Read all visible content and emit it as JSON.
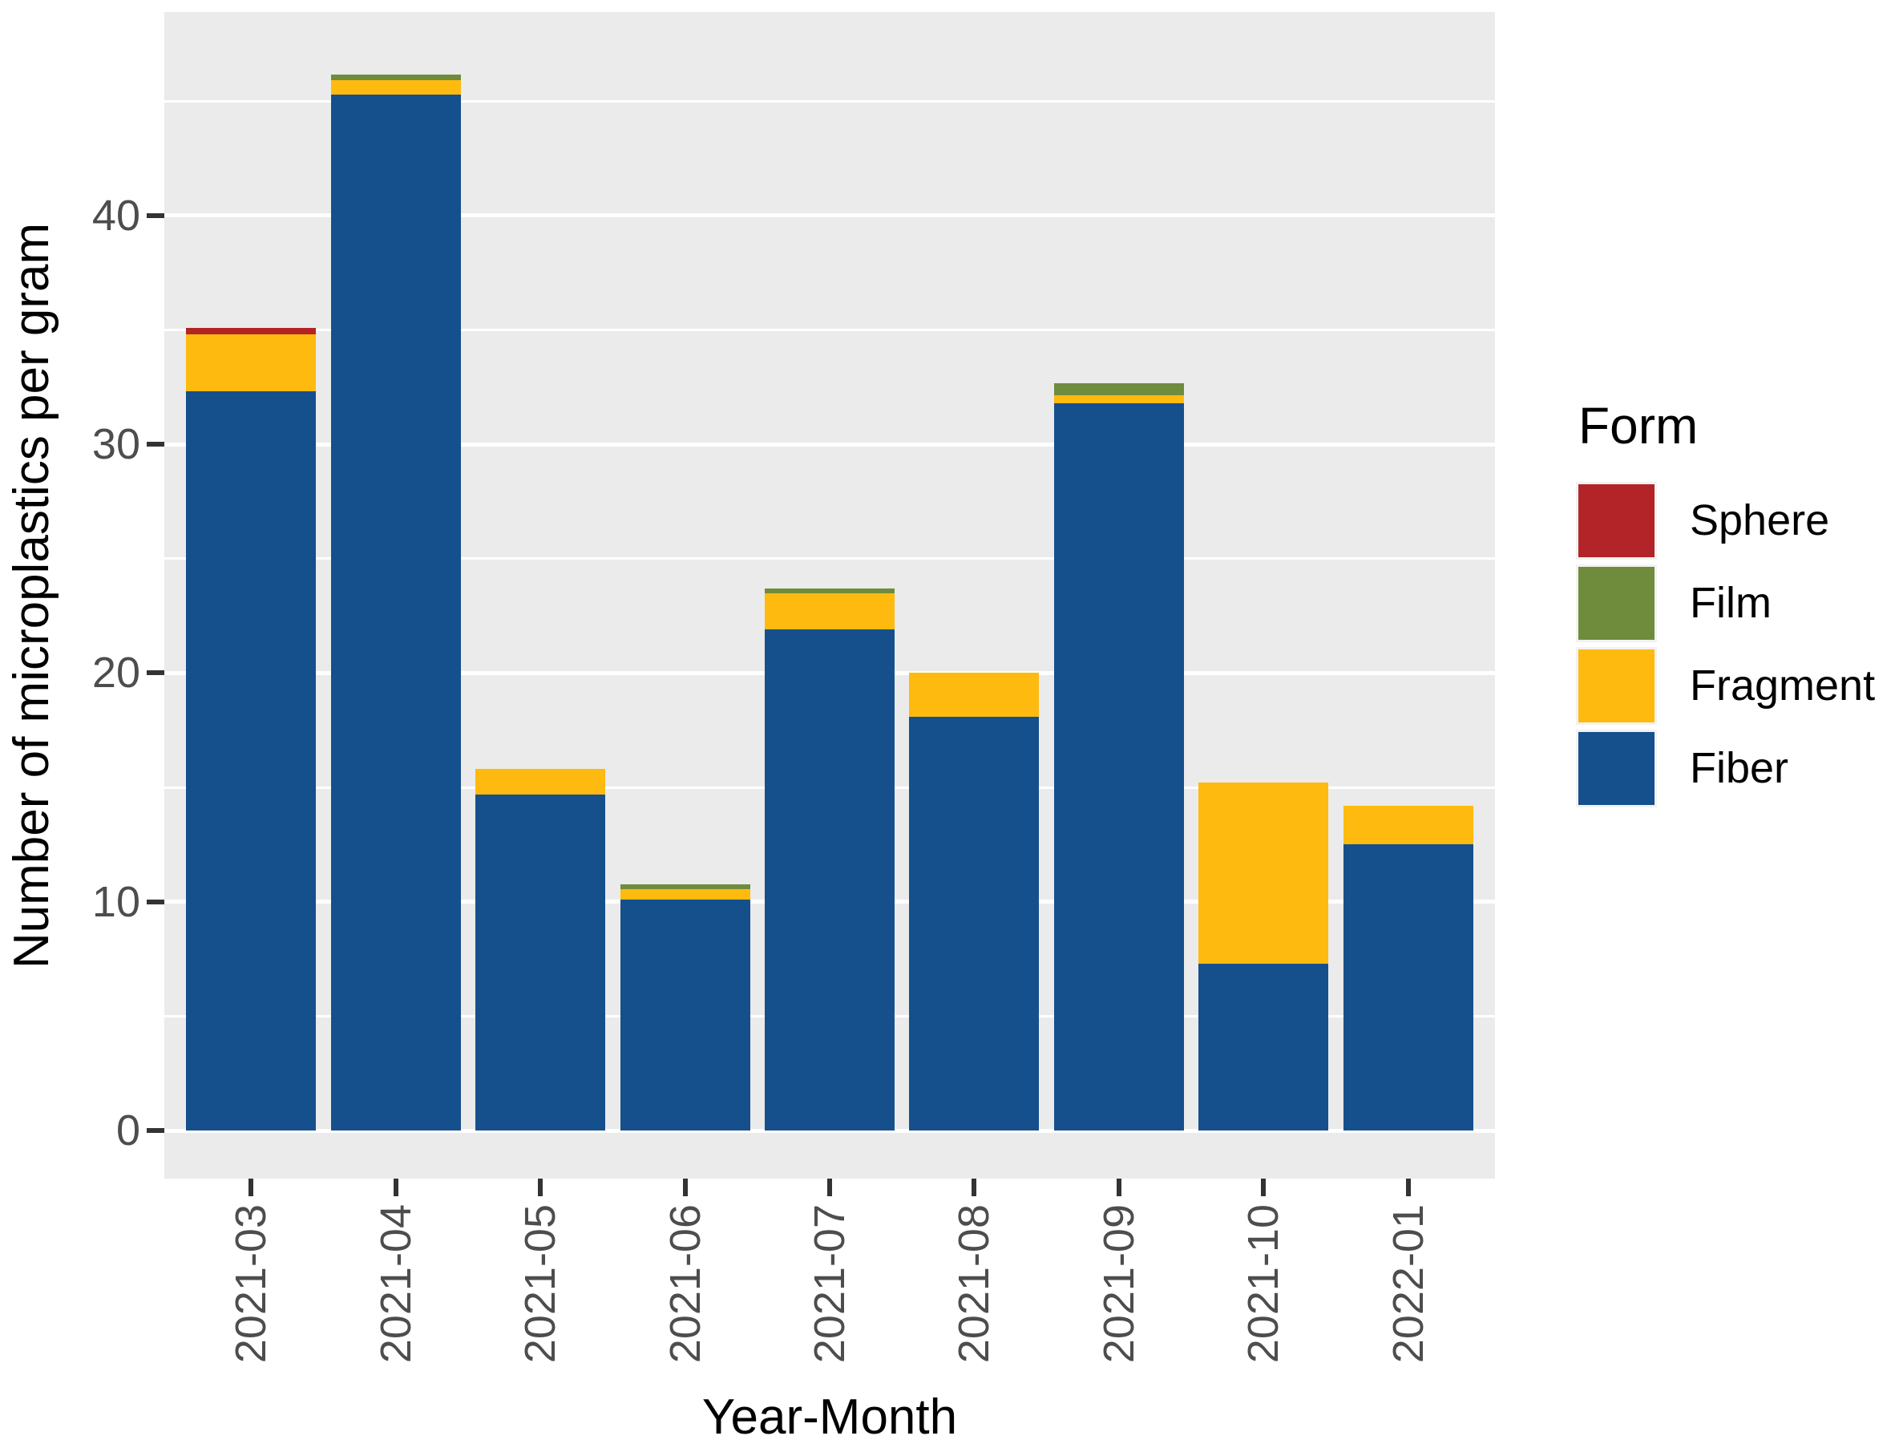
{
  "chart_data": {
    "type": "bar",
    "stacked": true,
    "title": "",
    "xlabel": "Year-Month",
    "ylabel": "Number of microplastics per gram",
    "categories": [
      "2021-03",
      "2021-04",
      "2021-05",
      "2021-06",
      "2021-07",
      "2021-08",
      "2021-09",
      "2021-10",
      "2022-01"
    ],
    "series": [
      {
        "name": "Fiber",
        "color": "#15508D",
        "values": [
          32.3,
          45.3,
          14.7,
          10.1,
          21.9,
          18.1,
          31.8,
          7.3,
          12.5
        ]
      },
      {
        "name": "Fragment",
        "color": "#FFBA0F",
        "values": [
          2.5,
          0.6,
          1.1,
          0.45,
          1.6,
          1.9,
          0.35,
          7.9,
          1.7
        ]
      },
      {
        "name": "Film",
        "color": "#6F8C3D",
        "values": [
          0,
          0.25,
          0,
          0.2,
          0.2,
          0,
          0.5,
          0,
          0
        ]
      },
      {
        "name": "Sphere",
        "color": "#B22427",
        "values": [
          0.3,
          0,
          0,
          0,
          0,
          0,
          0,
          0,
          0
        ]
      }
    ],
    "totals": [
      35.1,
      46.15,
      15.8,
      10.75,
      23.7,
      20.0,
      32.65,
      15.2,
      14.2
    ],
    "legend": {
      "title": "Form",
      "position": "right",
      "entries_top_to_bottom": [
        "Sphere",
        "Film",
        "Fragment",
        "Fiber"
      ]
    },
    "y_axis": {
      "major_ticks": [
        0,
        10,
        20,
        30,
        40
      ],
      "minor_gridlines": [
        5,
        15,
        25,
        35,
        45
      ],
      "range_shown": [
        -2.1,
        48.9
      ]
    },
    "style": {
      "panel_background": "#EBEBEB",
      "gridline_color": "#FFFFFF",
      "axis_text_color": "#4D4D4D",
      "tick_mark_color": "#333333",
      "grid": true
    }
  }
}
